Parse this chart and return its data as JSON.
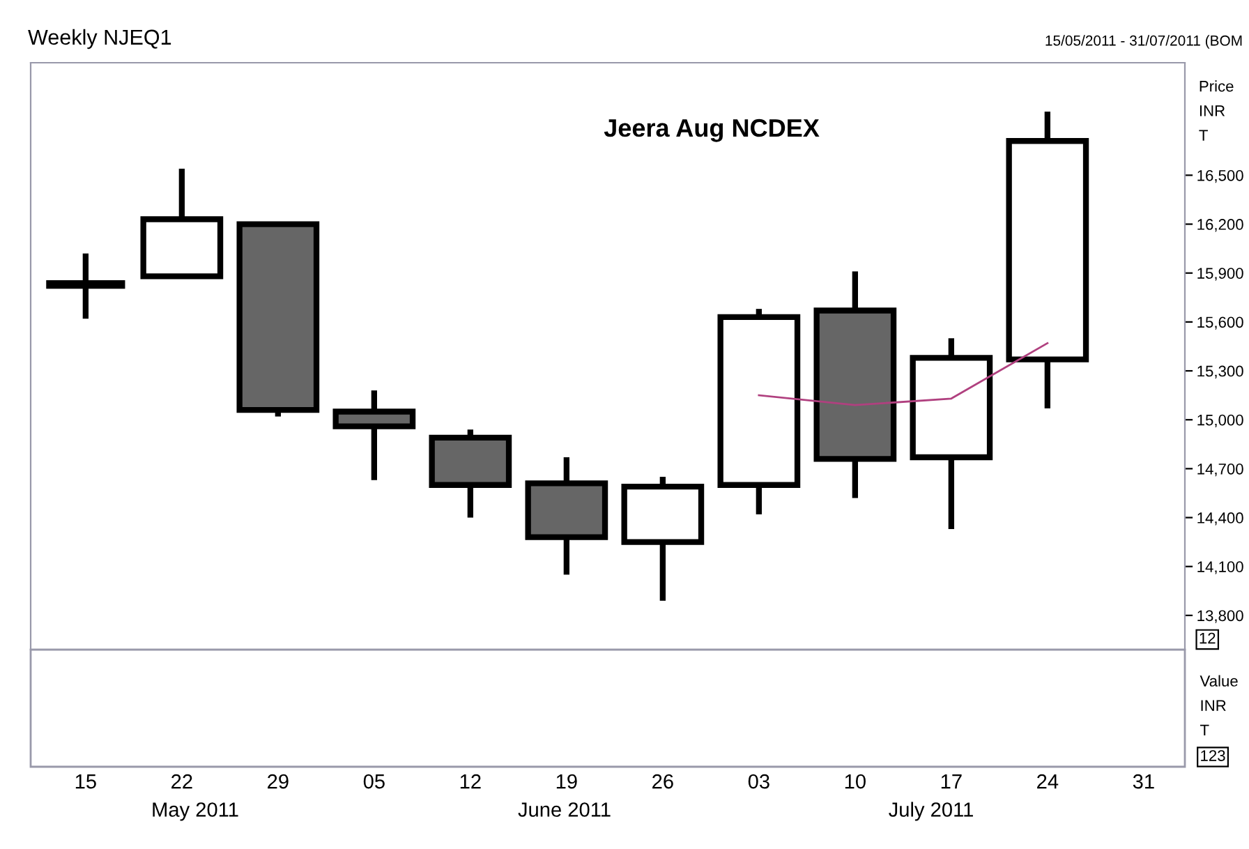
{
  "chart_data": {
    "type": "candlestick",
    "title": "Weekly NJEQ1",
    "subtitle": "15/05/2011 - 31/07/2011 (BOM",
    "ylabel": "Price\nINR\nT",
    "x": [
      "2011-05-15",
      "2011-05-22",
      "2011-05-29",
      "2011-06-05",
      "2011-06-12",
      "2011-06-19",
      "2011-06-26",
      "2011-07-03",
      "2011-07-10",
      "2011-07-17",
      "2011-07-24"
    ],
    "ohlc": [
      [
        15810,
        16020,
        15620,
        15850
      ],
      [
        15880,
        16540,
        15880,
        16230
      ],
      [
        16200,
        16200,
        15020,
        15060
      ],
      [
        15050,
        15180,
        14630,
        14960
      ],
      [
        14890,
        14940,
        14400,
        14600
      ],
      [
        14610,
        14770,
        14050,
        14280
      ],
      [
        14250,
        14650,
        13890,
        14590
      ],
      [
        14600,
        15680,
        14420,
        15630
      ],
      [
        15670,
        15910,
        14520,
        14760
      ],
      [
        14770,
        15500,
        14330,
        15380
      ],
      [
        15370,
        16890,
        15070,
        16710
      ]
    ],
    "colors": [
      "#000000",
      "#ffffff",
      "#666666",
      "#666666",
      "#666666",
      "#666666",
      "#ffffff",
      "#ffffff",
      "#666666",
      "#ffffff",
      "#ffffff"
    ],
    "series": [
      {
        "type": "line",
        "x": [
          "2011-07-03",
          "2011-07-10",
          "2011-07-17",
          "2011-07-24"
        ],
        "values": [
          15150,
          15090,
          15130,
          15470
        ],
        "color": "#b0407f"
      }
    ],
    "xlim": [
      "2011-05-11",
      "2011-08-03"
    ],
    "ylim": [
      13590,
      17190
    ],
    "xticks": [
      {
        "value": "2011-05-15",
        "label": "15"
      },
      {
        "value": "2011-05-22",
        "label": "22"
      },
      {
        "value": "2011-05-29",
        "label": "29"
      },
      {
        "value": "2011-06-05",
        "label": "05"
      },
      {
        "value": "2011-06-12",
        "label": "12"
      },
      {
        "value": "2011-06-19",
        "label": "19"
      },
      {
        "value": "2011-06-26",
        "label": "26"
      },
      {
        "value": "2011-07-03",
        "label": "03"
      },
      {
        "value": "2011-07-10",
        "label": "10"
      },
      {
        "value": "2011-07-17",
        "label": "17"
      },
      {
        "value": "2011-07-24",
        "label": "24"
      },
      {
        "value": "2011-07-31",
        "label": "31"
      }
    ],
    "yticks": [
      {
        "value": 13800,
        "label": "13,800"
      },
      {
        "value": 14100,
        "label": "14,100"
      },
      {
        "value": 14400,
        "label": "14,400"
      },
      {
        "value": 14700,
        "label": "14,700"
      },
      {
        "value": 15000,
        "label": "15,000"
      },
      {
        "value": 15300,
        "label": "15,300"
      },
      {
        "value": 15600,
        "label": "15,600"
      },
      {
        "value": 15900,
        "label": "15,900"
      },
      {
        "value": 16200,
        "label": "16,200"
      },
      {
        "value": 16500,
        "label": "16,500"
      }
    ],
    "grid": false,
    "legend": false,
    "annotations": [
      "Jeera Aug NCDEX",
      "12",
      "Value\nINR\nT",
      "123",
      "May 2011",
      "June 2011",
      "July 2011"
    ]
  }
}
